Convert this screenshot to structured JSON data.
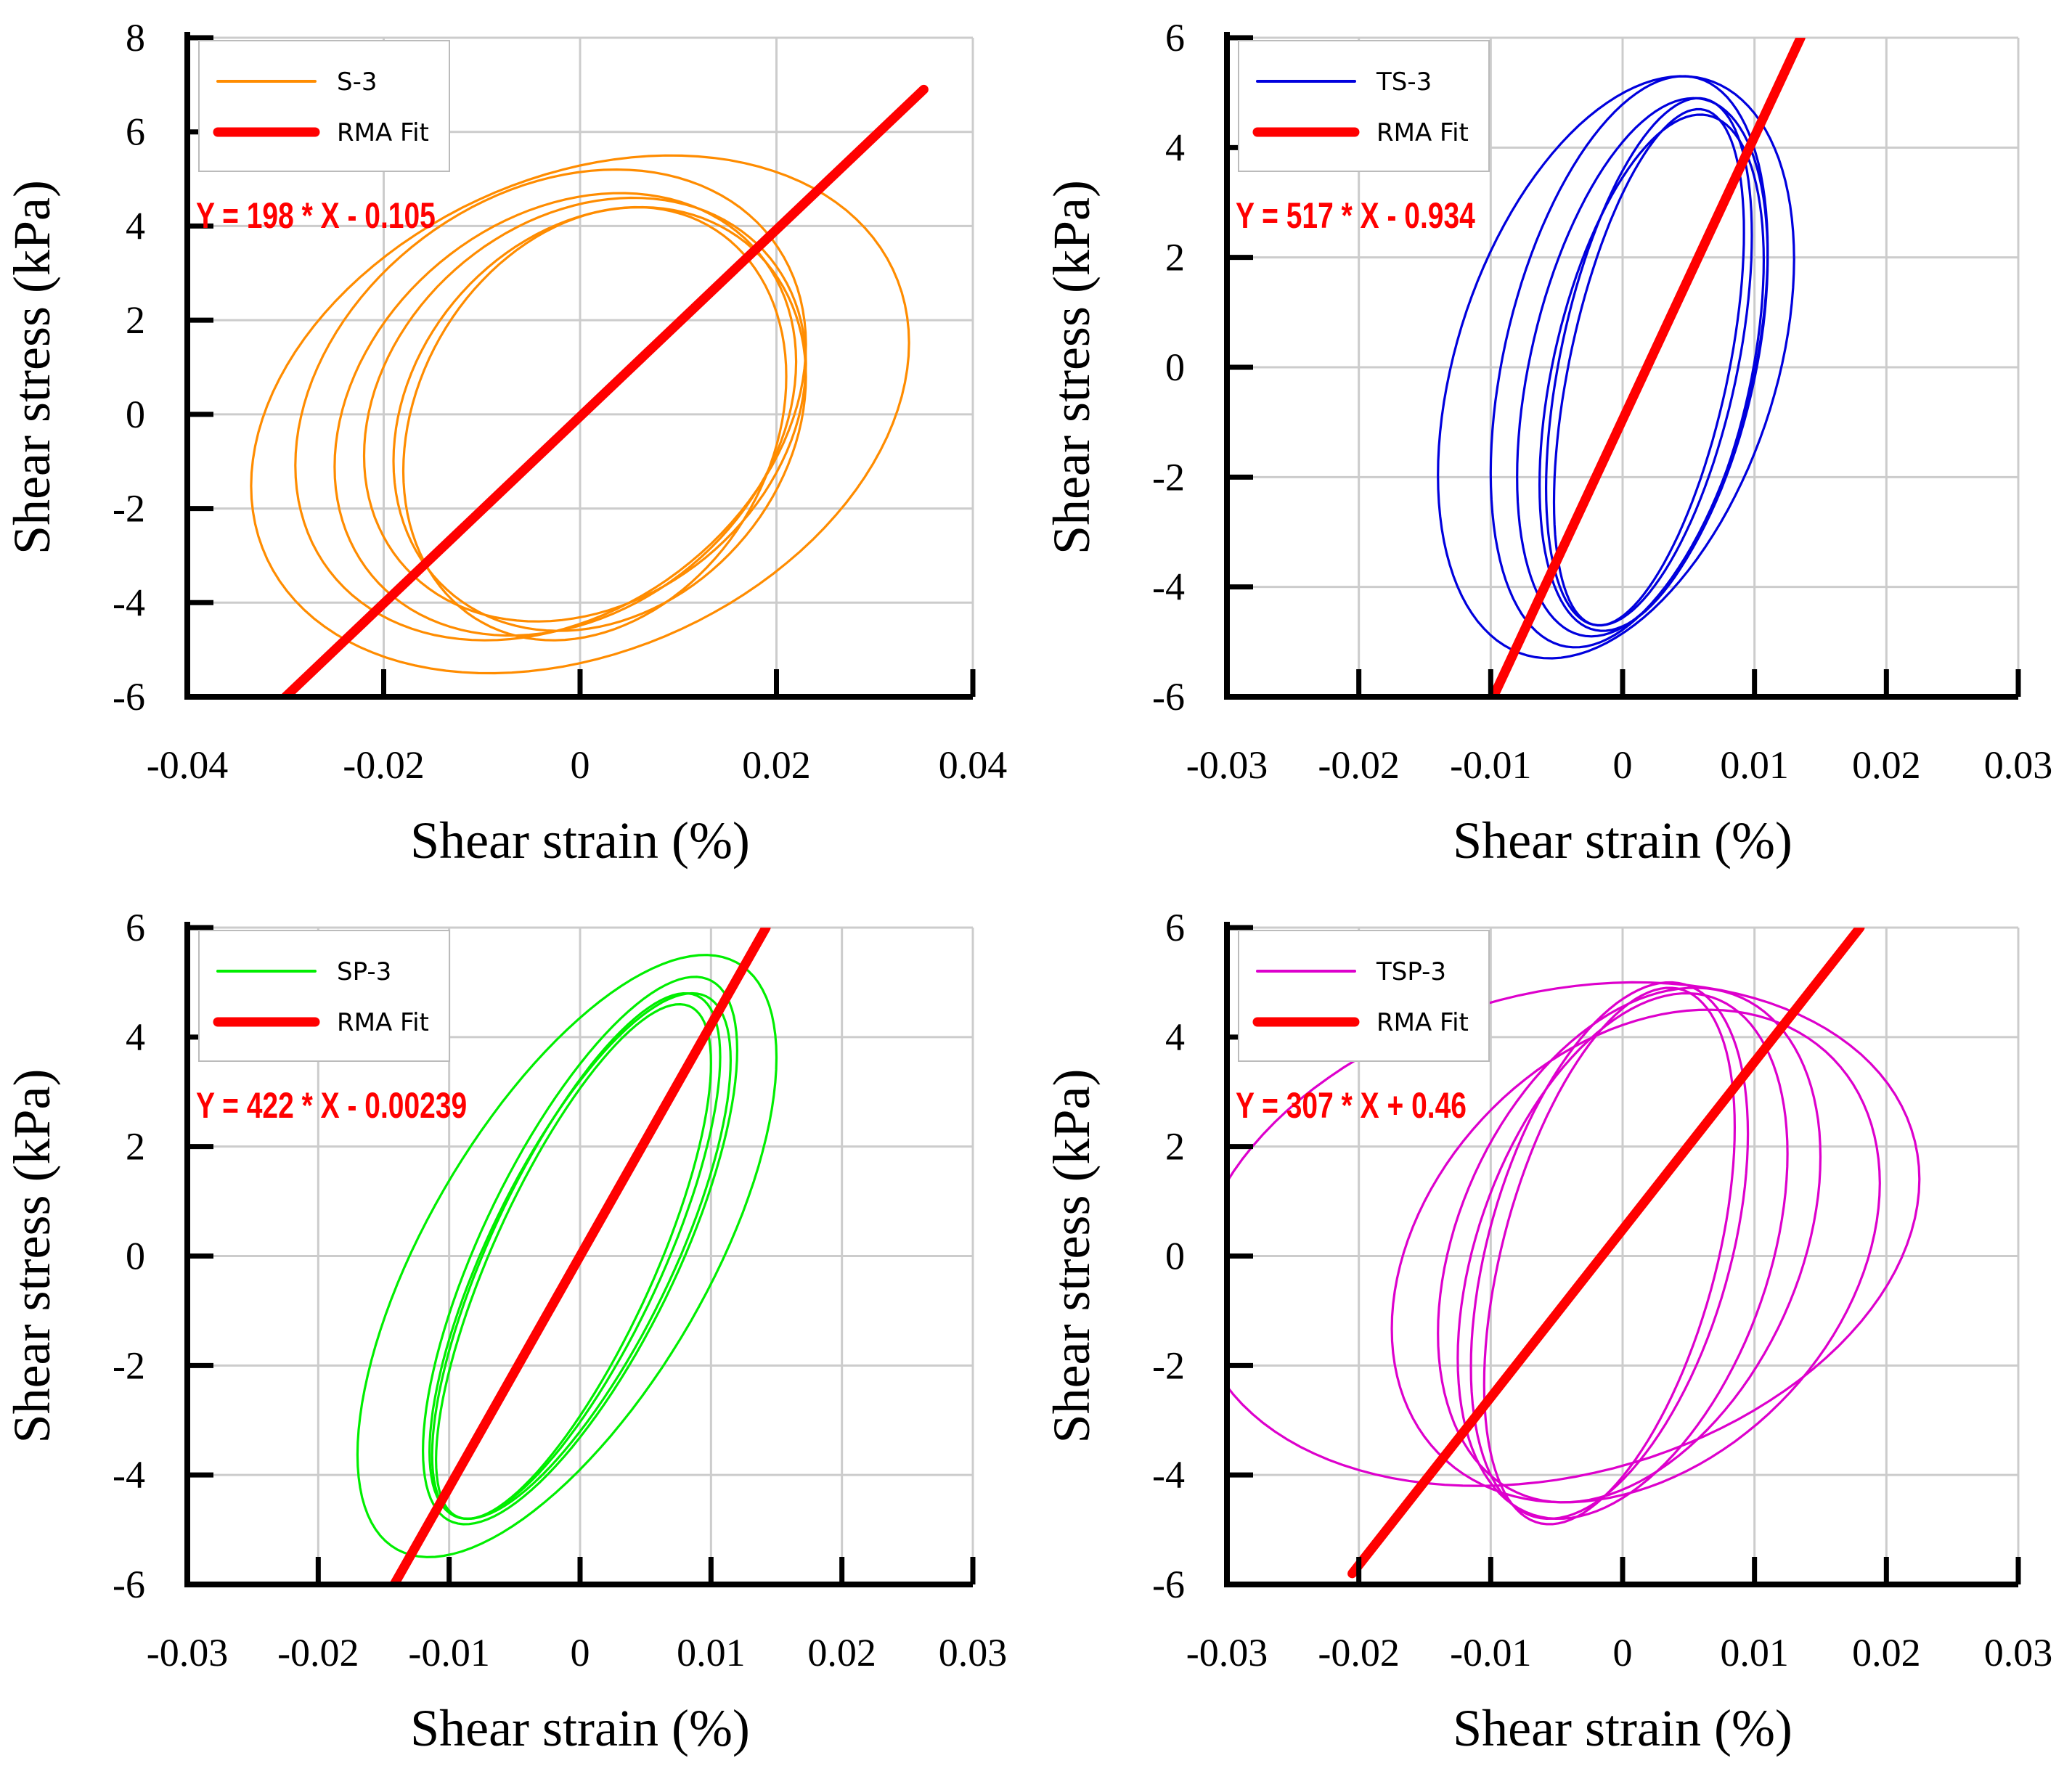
{
  "chart_data": [
    {
      "type": "line",
      "title": "",
      "xlabel": "Shear strain (%)",
      "ylabel": "Shear stress (kPa)",
      "xlim": [
        -0.04,
        0.04
      ],
      "ylim": [
        -6,
        8
      ],
      "xticks": [
        -0.04,
        -0.02,
        0,
        0.02,
        0.04
      ],
      "yticks": [
        -6,
        -4,
        -2,
        0,
        2,
        4,
        6,
        8
      ],
      "xtick_labels": [
        "-0.04",
        "-0.02",
        "0",
        "0.02",
        "0.04"
      ],
      "ytick_labels": [
        "-6",
        "-4",
        "-2",
        "0",
        "2",
        "4",
        "6",
        "8"
      ],
      "grid": true,
      "legend_position": "top-left",
      "series": [
        {
          "name": "S-3",
          "color": "#ff8c00",
          "kind": "hysteresis",
          "cycles": [
            {
              "xc": 0.0015,
              "yc": -0.2,
              "xa": 0.0195,
              "ya": 4.6,
              "tilt": 0.22
            },
            {
              "xc": 0.002,
              "yc": -0.1,
              "xa": 0.021,
              "ya": 4.5,
              "tilt": 0.2
            },
            {
              "xc": 0.0005,
              "yc": 0.1,
              "xa": 0.0225,
              "ya": 4.5,
              "tilt": 0.22
            },
            {
              "xc": -0.0015,
              "yc": 0.0,
              "xa": 0.0235,
              "ya": 4.7,
              "tilt": 0.24
            },
            {
              "xc": -0.003,
              "yc": 0.2,
              "xa": 0.026,
              "ya": 5.0,
              "tilt": 0.26
            },
            {
              "xc": 0.0,
              "yc": 0.0,
              "xa": 0.0335,
              "ya": 5.5,
              "tilt": 0.28
            }
          ]
        },
        {
          "name": "RMA Fit",
          "color": "#ff0000",
          "kind": "line",
          "x": [
            -0.03,
            0.035
          ],
          "y": [
            -6.0,
            6.9
          ]
        }
      ],
      "annotations": [
        "Y = 198 * X - 0.105"
      ]
    },
    {
      "type": "line",
      "title": "",
      "xlabel": "Shear strain (%)",
      "ylabel": "Shear stress (kPa)",
      "xlim": [
        -0.03,
        0.03
      ],
      "ylim": [
        -6,
        6
      ],
      "xticks": [
        -0.03,
        -0.02,
        -0.01,
        0,
        0.01,
        0.02,
        0.03
      ],
      "yticks": [
        -6,
        -4,
        -2,
        0,
        2,
        4,
        6
      ],
      "xtick_labels": [
        "-0.03",
        "-0.02",
        "-0.01",
        "0",
        "0.01",
        "0.02",
        "0.03"
      ],
      "ytick_labels": [
        "-6",
        "-4",
        "-2",
        "0",
        "2",
        "4",
        "6"
      ],
      "grid": true,
      "legend_position": "top-left",
      "series": [
        {
          "name": "TS-3",
          "color": "#0000dd",
          "kind": "hysteresis",
          "cycles": [
            {
              "xc": 0.002,
              "yc": 0.0,
              "xa": 0.0072,
              "ya": 4.7,
              "tilt": 0.55
            },
            {
              "xc": 0.002,
              "yc": 0.1,
              "xa": 0.0078,
              "ya": 4.8,
              "tilt": 0.5
            },
            {
              "xc": 0.0022,
              "yc": -0.1,
              "xa": 0.0085,
              "ya": 4.7,
              "tilt": 0.45
            },
            {
              "xc": 0.0015,
              "yc": 0.0,
              "xa": 0.0095,
              "ya": 4.9,
              "tilt": 0.42
            },
            {
              "xc": 0.0005,
              "yc": 0.1,
              "xa": 0.0105,
              "ya": 5.2,
              "tilt": 0.4
            },
            {
              "xc": -0.0005,
              "yc": 0.0,
              "xa": 0.0135,
              "ya": 5.3,
              "tilt": 0.38
            }
          ]
        },
        {
          "name": "RMA Fit",
          "color": "#ff0000",
          "kind": "line",
          "x": [
            -0.0098,
            0.0135
          ],
          "y": [
            -6.0,
            6.0
          ]
        }
      ],
      "annotations": [
        "Y = 517 * X - 0.934"
      ]
    },
    {
      "type": "line",
      "title": "",
      "xlabel": "Shear strain (%)",
      "ylabel": "Shear stress (kPa)",
      "xlim": [
        -0.03,
        0.03
      ],
      "ylim": [
        -6,
        6
      ],
      "xticks": [
        -0.03,
        -0.02,
        -0.01,
        0,
        0.01,
        0.02,
        0.03
      ],
      "yticks": [
        -6,
        -4,
        -2,
        0,
        2,
        4,
        6
      ],
      "xtick_labels": [
        "-0.03",
        "-0.02",
        "-0.01",
        "0",
        "0.01",
        "0.02",
        "0.03"
      ],
      "ytick_labels": [
        "-6",
        "-4",
        "-2",
        "0",
        "2",
        "4",
        "6"
      ],
      "grid": true,
      "legend_position": "top-left",
      "series": [
        {
          "name": "SP-3",
          "color": "#00ee00",
          "kind": "hysteresis",
          "cycles": [
            {
              "xc": -0.0005,
              "yc": -0.1,
              "xa": 0.0105,
              "ya": 4.7,
              "tilt": 0.88
            },
            {
              "xc": -0.0003,
              "yc": 0.0,
              "xa": 0.011,
              "ya": 4.8,
              "tilt": 0.86
            },
            {
              "xc": 0.0,
              "yc": 0.0,
              "xa": 0.0115,
              "ya": 4.8,
              "tilt": 0.84
            },
            {
              "xc": 0.0,
              "yc": 0.1,
              "xa": 0.012,
              "ya": 5.0,
              "tilt": 0.82
            },
            {
              "xc": -0.001,
              "yc": 0.0,
              "xa": 0.016,
              "ya": 5.5,
              "tilt": 0.72
            }
          ]
        },
        {
          "name": "RMA Fit",
          "color": "#ff0000",
          "kind": "line",
          "x": [
            -0.0142,
            0.0142
          ],
          "y": [
            -6.0,
            6.0
          ]
        }
      ],
      "annotations": [
        "Y = 422 * X - 0.00239"
      ]
    },
    {
      "type": "line",
      "title": "",
      "xlabel": "Shear strain (%)",
      "ylabel": "Shear stress (kPa)",
      "xlim": [
        -0.03,
        0.03
      ],
      "ylim": [
        -6,
        6
      ],
      "xticks": [
        -0.03,
        -0.02,
        -0.01,
        0,
        0.01,
        0.02,
        0.03
      ],
      "yticks": [
        -6,
        -4,
        -2,
        0,
        2,
        4,
        6
      ],
      "xtick_labels": [
        "-0.03",
        "-0.02",
        "-0.01",
        "0",
        "0.01",
        "0.02",
        "0.03"
      ],
      "ytick_labels": [
        "-6",
        "-4",
        "-2",
        "0",
        "2",
        "4",
        "6"
      ],
      "grid": true,
      "legend_position": "top-left",
      "series": [
        {
          "name": "TSP-3",
          "color": "#dd00cc",
          "kind": "hysteresis",
          "cycles": [
            {
              "xc": -0.001,
              "yc": 0.0,
              "xa": 0.0095,
              "ya": 4.9,
              "tilt": 0.5
            },
            {
              "xc": -0.001,
              "yc": 0.1,
              "xa": 0.0105,
              "ya": 4.9,
              "tilt": 0.45
            },
            {
              "xc": 0.0,
              "yc": 0.0,
              "xa": 0.0125,
              "ya": 4.8,
              "tilt": 0.4
            },
            {
              "xc": 0.0005,
              "yc": 0.2,
              "xa": 0.0145,
              "ya": 4.7,
              "tilt": 0.35
            },
            {
              "xc": 0.001,
              "yc": 0.0,
              "xa": 0.0185,
              "ya": 4.5,
              "tilt": 0.3
            },
            {
              "xc": -0.005,
              "yc": 0.4,
              "xa": 0.0275,
              "ya": 4.6,
              "tilt": 0.22
            }
          ]
        },
        {
          "name": "RMA Fit",
          "color": "#ff0000",
          "kind": "line",
          "x": [
            -0.0205,
            0.018
          ],
          "y": [
            -5.8,
            6.0
          ]
        }
      ],
      "annotations": [
        "Y = 307 * X + 0.46"
      ]
    }
  ]
}
